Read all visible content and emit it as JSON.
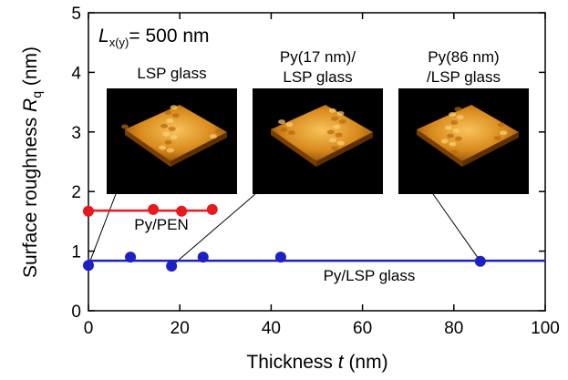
{
  "chart_data": {
    "type": "scatter",
    "annotation": {
      "main": "L",
      "sub": "x(y)",
      "rest": "= 500 nm"
    },
    "xlabel": {
      "text": "Thickness ",
      "italic": "t",
      "unit": " (nm)"
    },
    "ylabel": {
      "text": "Surface roughness ",
      "italic": "R",
      "sub": "q",
      "unit": " (nm)"
    },
    "xlim": [
      0,
      100
    ],
    "ylim": [
      0,
      5
    ],
    "xticks": [
      0,
      20,
      40,
      60,
      80,
      100
    ],
    "yticks": [
      0,
      1,
      2,
      3,
      4,
      5
    ],
    "series": [
      {
        "name": "Py/PEN",
        "color": "#e8191c",
        "x": [
          0,
          14.2,
          20.4,
          27.1
        ],
        "values": [
          1.67,
          1.7,
          1.67,
          1.7
        ],
        "fit_value": 1.68,
        "fit_x": [
          0,
          27.1
        ]
      },
      {
        "name": "Py/LSP glass",
        "color": "#1d21c4",
        "x": [
          0,
          9.2,
          18.2,
          25.1,
          42.1,
          85.8
        ],
        "values": [
          0.76,
          0.9,
          0.75,
          0.9,
          0.9,
          0.83
        ],
        "fit_value": 0.84,
        "fit_x": [
          0,
          100
        ]
      }
    ],
    "insets": [
      {
        "lines": [
          "LSP glass"
        ]
      },
      {
        "lines": [
          "Py(17 nm)/",
          "LSP glass"
        ]
      },
      {
        "lines": [
          "Py(86 nm)",
          "/LSP glass"
        ]
      }
    ]
  }
}
